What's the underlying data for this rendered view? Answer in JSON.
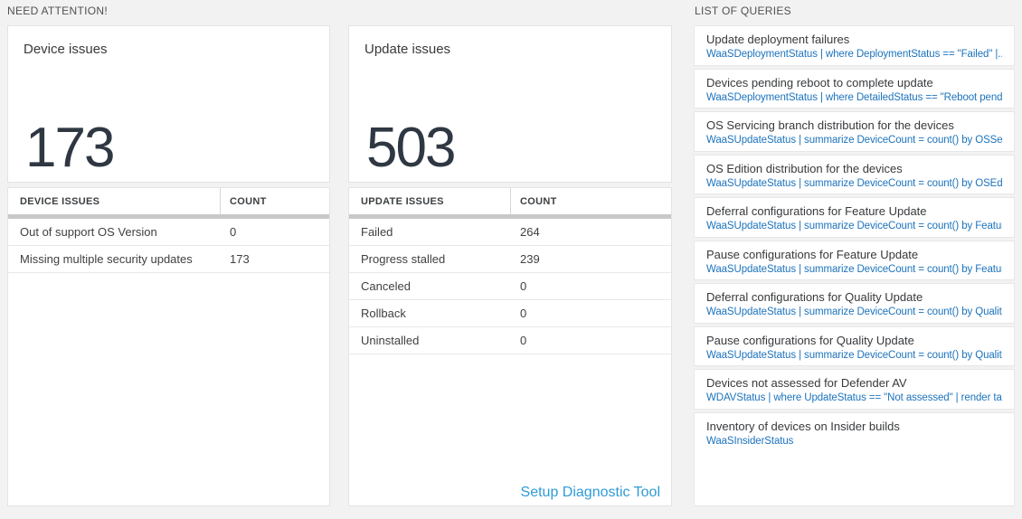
{
  "sections": {
    "need_attention": "NEED ATTENTION!",
    "list_of_queries": "LIST OF QUERIES"
  },
  "device_card": {
    "title": "Device issues",
    "value": "173"
  },
  "device_table": {
    "col1_header": "DEVICE ISSUES",
    "col2_header": "COUNT",
    "rows": [
      {
        "issue": "Out of support OS Version",
        "count": "0"
      },
      {
        "issue": "Missing multiple security updates",
        "count": "173"
      }
    ]
  },
  "update_card": {
    "title": "Update issues",
    "value": "503"
  },
  "update_table": {
    "col1_header": "UPDATE ISSUES",
    "col2_header": "COUNT",
    "rows": [
      {
        "issue": "Failed",
        "count": "264"
      },
      {
        "issue": "Progress stalled",
        "count": "239"
      },
      {
        "issue": "Canceled",
        "count": "0"
      },
      {
        "issue": "Rollback",
        "count": "0"
      },
      {
        "issue": "Uninstalled",
        "count": "0"
      }
    ],
    "footer_link": "Setup Diagnostic Tool"
  },
  "queries": [
    {
      "title": "Update deployment failures",
      "query": "WaaSDeploymentStatus | where DeploymentStatus == \"Failed\" |..."
    },
    {
      "title": "Devices pending reboot to complete update",
      "query": "WaaSDeploymentStatus | where DetailedStatus == \"Reboot pend..."
    },
    {
      "title": "OS Servicing branch distribution for the devices",
      "query": "WaaSUpdateStatus | summarize DeviceCount = count() by OSSer..."
    },
    {
      "title": "OS Edition distribution for the devices",
      "query": "WaaSUpdateStatus | summarize DeviceCount = count() by OSEdit..."
    },
    {
      "title": "Deferral configurations for Feature Update",
      "query": "WaaSUpdateStatus | summarize DeviceCount = count() by Featur..."
    },
    {
      "title": "Pause configurations for Feature Update",
      "query": "WaaSUpdateStatus | summarize DeviceCount = count() by Featur..."
    },
    {
      "title": "Deferral configurations for Quality Update",
      "query": "WaaSUpdateStatus | summarize DeviceCount = count() by Qualit..."
    },
    {
      "title": "Pause configurations for Quality Update",
      "query": "WaaSUpdateStatus | summarize DeviceCount = count() by Qualit..."
    },
    {
      "title": "Devices not assessed for Defender AV",
      "query": "WDAVStatus | where UpdateStatus == \"Not assessed\" | render ta..."
    },
    {
      "title": "Inventory of devices on Insider builds",
      "query": "WaaSInsiderStatus"
    }
  ],
  "colors": {
    "page_background": "#f2f2f2",
    "query_text_blue": "#1c73bd",
    "setup_link_blue": "#2e9bd6",
    "big_number_color": "#2f3842",
    "table_header_bar": "#c8c8c8"
  }
}
